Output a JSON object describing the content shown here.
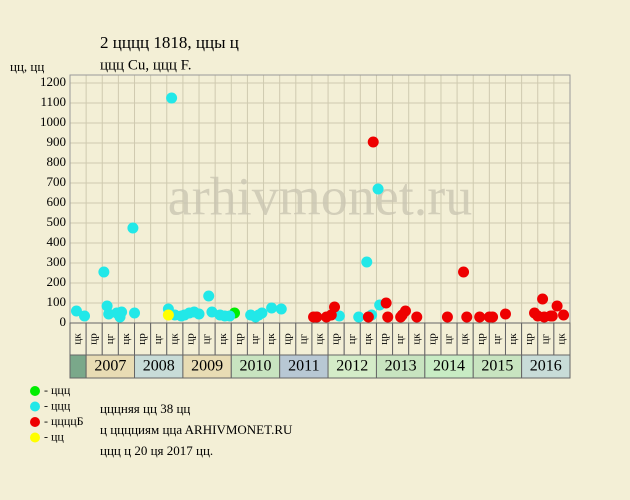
{
  "chart_data": {
    "type": "scatter",
    "title": "2 цццц 1818, ццы ц",
    "subtitle": "ццц Cu, ццц F.",
    "y_label": "цц, цц",
    "watermark": "arhivmonet.ru",
    "categories": [
      "цк",
      "цр",
      "цг",
      "цк",
      "цр",
      "цг",
      "цк",
      "цр",
      "цг",
      "цк",
      "цр",
      "цг",
      "цк",
      "цр",
      "цг",
      "цк",
      "цр",
      "цг",
      "цк",
      "цр",
      "цг",
      "цк",
      "цр",
      "цг",
      "цк",
      "цр",
      "цг",
      "цк",
      "цр",
      "цг",
      "цк"
    ],
    "years": [
      "2007",
      "2008",
      "2009",
      "2010",
      "2011",
      "2012",
      "2013",
      "2014",
      "2015",
      "2016"
    ],
    "year_colors": [
      "#e8dcb4",
      "#c8dcd8",
      "#e8dcb4",
      "#c8e4c0",
      "#b8c8d4",
      "#d4ecc8",
      "#c8e4c0",
      "#c8ecc4",
      "#c8e4c0",
      "#c8dcd8"
    ],
    "xlim": [
      0,
      31
    ],
    "ylim": [
      0,
      1200
    ],
    "yticks": [
      0,
      100,
      200,
      300,
      400,
      500,
      600,
      700,
      800,
      900,
      1000,
      1100,
      1200
    ],
    "grid": true,
    "series": [
      {
        "name": "- ццц",
        "color": "#00ee00",
        "x": [
          10.2
        ],
        "values": [
          50
        ]
      },
      {
        "name": "- ццц",
        "color": "#22e8e8",
        "x": [
          0.4,
          0.9,
          2.1,
          2.3,
          2.4,
          2.9,
          3.2,
          3.1,
          3.9,
          4.0,
          6.1,
          6.3,
          6.5,
          6.9,
          7.1,
          7.4,
          7.7,
          8.0,
          8.6,
          8.8,
          9.3,
          9.6,
          9.9,
          11.2,
          11.5,
          11.7,
          11.9,
          12.5,
          13.1,
          15.3,
          16.7,
          17.9,
          18.4,
          18.7,
          19.1,
          19.2
        ],
        "values": [
          60,
          35,
          255,
          85,
          45,
          50,
          55,
          30,
          475,
          50,
          70,
          1125,
          40,
          35,
          40,
          50,
          55,
          45,
          135,
          55,
          40,
          35,
          35,
          40,
          30,
          40,
          50,
          75,
          70,
          30,
          35,
          30,
          305,
          40,
          670,
          90
        ]
      },
      {
        "name": "- ццццБ",
        "color": "#ee0000",
        "x": [
          15.1,
          15.3,
          15.9,
          16.2,
          16.4,
          18.5,
          18.8,
          19.6,
          19.7,
          20.5,
          20.6,
          20.8,
          21.5,
          23.4,
          24.4,
          24.6,
          25.4,
          26.0,
          26.2,
          27.0,
          28.8,
          29.0,
          29.3,
          29.4,
          29.8,
          29.9,
          30.2,
          30.6
        ],
        "values": [
          30,
          30,
          30,
          40,
          80,
          30,
          905,
          100,
          30,
          30,
          40,
          60,
          30,
          30,
          255,
          30,
          30,
          30,
          30,
          45,
          50,
          35,
          120,
          30,
          35,
          35,
          85,
          40
        ]
      },
      {
        "name": "- цц",
        "color": "#ffff00",
        "x": [
          6.1
        ],
        "values": [
          40
        ]
      }
    ],
    "notes": [
      "цццняя цц 38 цц",
      "ц цццциям ццa ARHIVMONET.RU",
      "ццц ц 20 ця 2017 цц."
    ]
  }
}
